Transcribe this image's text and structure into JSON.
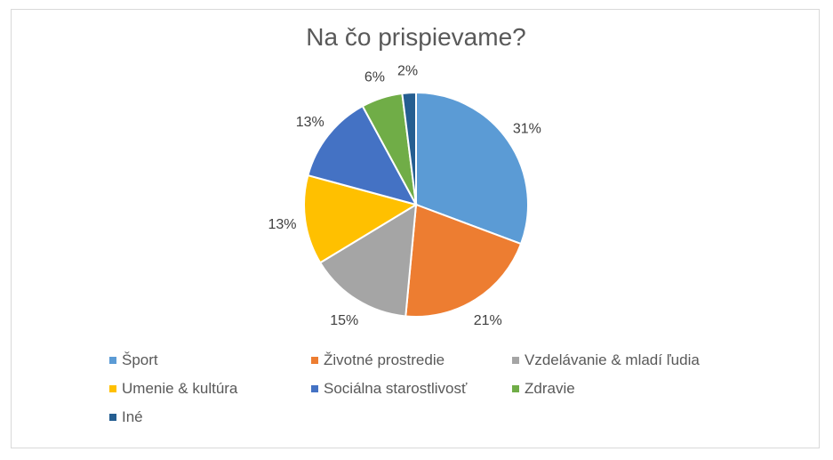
{
  "chart_data": {
    "type": "pie",
    "title": "Na čo prispievame?",
    "categories": [
      "Šport",
      "Životné prostredie",
      "Vzdelávanie & mladí ľudia",
      "Umenie & kultúra",
      "Sociálna starostlivosť",
      "Zdravie",
      "Iné"
    ],
    "values": [
      31,
      21,
      15,
      13,
      13,
      6,
      2
    ],
    "value_labels": [
      "31%",
      "21%",
      "15%",
      "13%",
      "13%",
      "6%",
      "2%"
    ],
    "colors": [
      "#5B9BD5",
      "#ED7D31",
      "#A5A5A5",
      "#FFC000",
      "#4472C4",
      "#70AD47",
      "#255E91"
    ],
    "legend": "bottom"
  }
}
